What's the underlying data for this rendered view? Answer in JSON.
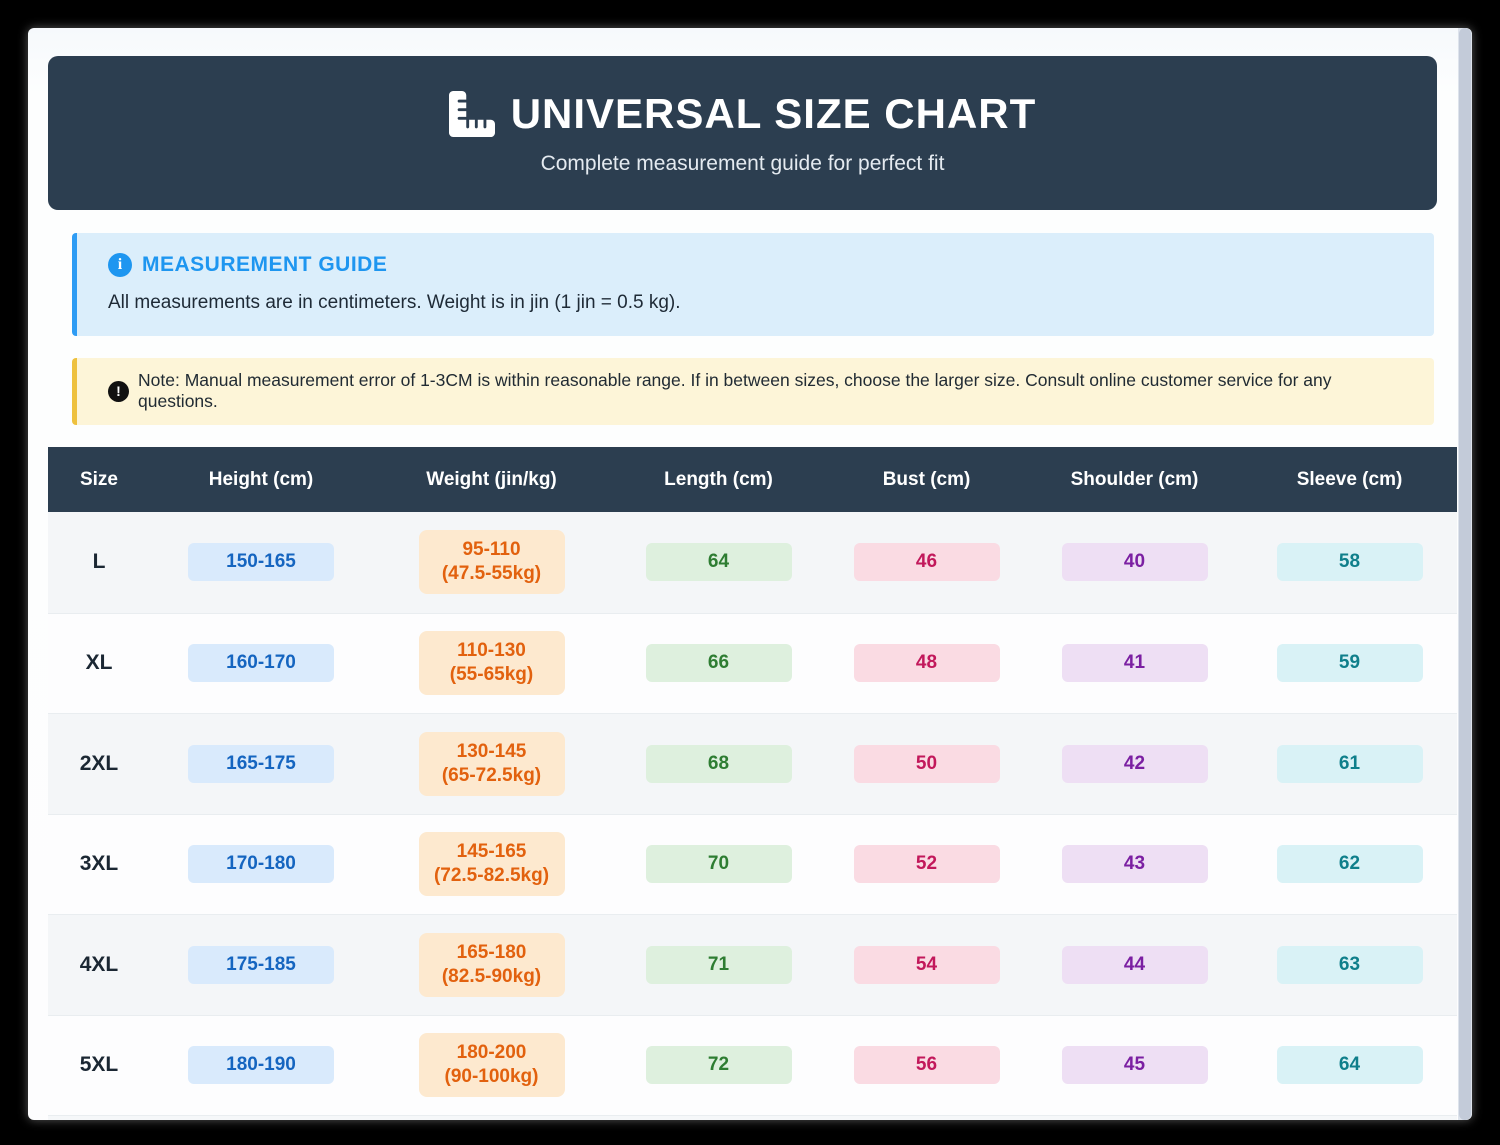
{
  "header": {
    "title": "UNIVERSAL SIZE CHART",
    "subtitle": "Complete measurement guide for perfect fit",
    "icon": "ruler-combined-icon"
  },
  "guide": {
    "icon": "info-circle-icon",
    "title": "MEASUREMENT GUIDE",
    "text": "All measurements are in centimeters. Weight is in jin (1 jin = 0.5 kg)."
  },
  "note": {
    "icon": "exclamation-circle-icon",
    "text": "Note: Manual measurement error of 1-3CM is within reasonable range. If in between sizes, choose the larger size. Consult online customer service for any questions."
  },
  "colors": {
    "banner_bg": "#2c3e50",
    "guide_accent": "#1e96f0",
    "note_accent": "#eec13e",
    "height_text": "#1565c0",
    "weight_text": "#e2610e",
    "length_text": "#2e7d32",
    "bust_text": "#c2185b",
    "shoulder_text": "#7b1fa2",
    "sleeve_text": "#0f7f8b"
  },
  "table": {
    "columns": [
      "Size",
      "Height (cm)",
      "Weight (jin/kg)",
      "Length (cm)",
      "Bust (cm)",
      "Shoulder (cm)",
      "Sleeve (cm)"
    ],
    "rows": [
      {
        "size": "L",
        "height": "150-165",
        "weight_jin": "95-110",
        "weight_kg": "(47.5-55kg)",
        "length": "64",
        "bust": "46",
        "shoulder": "40",
        "sleeve": "58"
      },
      {
        "size": "XL",
        "height": "160-170",
        "weight_jin": "110-130",
        "weight_kg": "(55-65kg)",
        "length": "66",
        "bust": "48",
        "shoulder": "41",
        "sleeve": "59"
      },
      {
        "size": "2XL",
        "height": "165-175",
        "weight_jin": "130-145",
        "weight_kg": "(65-72.5kg)",
        "length": "68",
        "bust": "50",
        "shoulder": "42",
        "sleeve": "61"
      },
      {
        "size": "3XL",
        "height": "170-180",
        "weight_jin": "145-165",
        "weight_kg": "(72.5-82.5kg)",
        "length": "70",
        "bust": "52",
        "shoulder": "43",
        "sleeve": "62"
      },
      {
        "size": "4XL",
        "height": "175-185",
        "weight_jin": "165-180",
        "weight_kg": "(82.5-90kg)",
        "length": "71",
        "bust": "54",
        "shoulder": "44",
        "sleeve": "63"
      },
      {
        "size": "5XL",
        "height": "180-190",
        "weight_jin": "180-200",
        "weight_kg": "(90-100kg)",
        "length": "72",
        "bust": "56",
        "shoulder": "45",
        "sleeve": "64"
      }
    ]
  }
}
